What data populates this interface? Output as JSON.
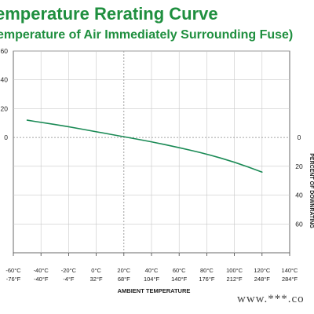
{
  "chart_data": {
    "type": "line",
    "title": "emperature Rerating Curve",
    "subtitle": "emperature of Air Immediately Surrounding Fuse)",
    "xlabel": "AMBIENT TEMPERATURE",
    "y2label": "PERCENT OF DOWNRATING",
    "x_ticks_c": [
      "-60°C",
      "-40°C",
      "-20°C",
      "0°C",
      "20°C",
      "40°C",
      "60°C",
      "80°C",
      "100°C",
      "120°C",
      "140°C"
    ],
    "x_ticks_f": [
      "-76°F",
      "-40°F",
      "-4°F",
      "32°F",
      "68°F",
      "104°F",
      "140°F",
      "176°F",
      "212°F",
      "248°F",
      "284°F"
    ],
    "x_tick_values": [
      -60,
      -40,
      -20,
      0,
      20,
      40,
      60,
      80,
      100,
      120,
      140
    ],
    "y_left_ticks": [
      "60",
      "40",
      "20",
      "0"
    ],
    "y_left_values": [
      60,
      40,
      20,
      0
    ],
    "y_right_ticks": [
      "0",
      "20",
      "40",
      "60"
    ],
    "y_right_values": [
      0,
      -20,
      -40,
      -60
    ],
    "xlim": [
      -60,
      140
    ],
    "ylim": [
      -80,
      60
    ],
    "grid": true,
    "series": [
      {
        "color": "#1a8a55",
        "x": [
          -50,
          -40,
          -20,
          0,
          20,
          40,
          60,
          80,
          100,
          120
        ],
        "y": [
          12,
          10.5,
          7.5,
          4,
          0.5,
          -3,
          -7,
          -11.5,
          -17,
          -24
        ]
      }
    ]
  },
  "watermark": "www.***.co"
}
